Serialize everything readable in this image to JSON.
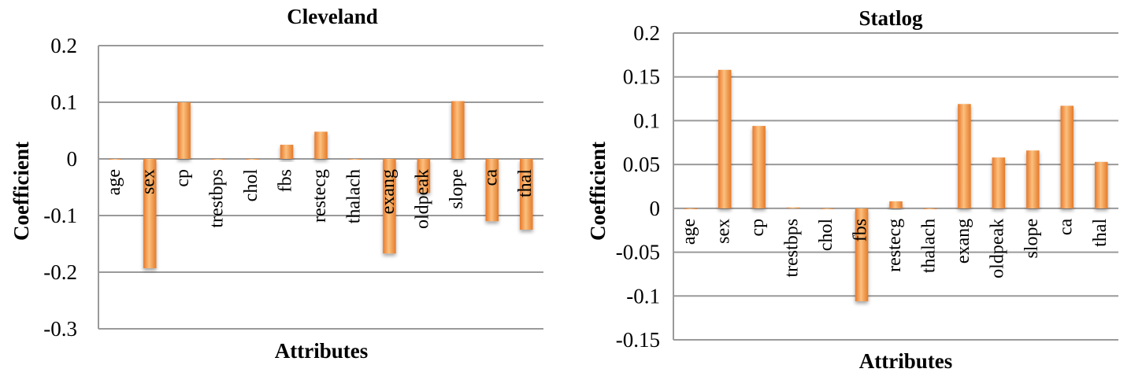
{
  "chart_data": [
    {
      "type": "bar",
      "title": "Cleveland",
      "xlabel": "Attributes",
      "ylabel": "Coefficient",
      "ylim": [
        -0.3,
        0.2
      ],
      "yticks": [
        0.2,
        0.1,
        0,
        -0.1,
        -0.2,
        -0.3
      ],
      "ytick_labels": [
        "0.2",
        "0.1",
        "0",
        "-0.1",
        "-0.2",
        "-0.3"
      ],
      "grid": true,
      "categories": [
        "age",
        "sex",
        "cp",
        "trestbps",
        "chol",
        "fbs",
        "restecg",
        "thalach",
        "exang",
        "oldpeak",
        "slope",
        "ca",
        "thal"
      ],
      "values": [
        -0.001,
        -0.193,
        0.1,
        -0.001,
        0.0,
        0.025,
        0.048,
        -0.001,
        -0.167,
        -0.06,
        0.102,
        -0.11,
        -0.125
      ],
      "bar_color": "#f0963c"
    },
    {
      "type": "bar",
      "title": "Statlog",
      "xlabel": "Attributes",
      "ylabel": "Coefficient",
      "ylim": [
        -0.15,
        0.2
      ],
      "yticks": [
        0.2,
        0.15,
        0.1,
        0.05,
        0,
        -0.05,
        -0.1,
        -0.15
      ],
      "ytick_labels": [
        "0.2",
        "0.15",
        "0.1",
        "0.05",
        "0",
        "-0.05",
        "-0.1",
        "-0.15"
      ],
      "grid": true,
      "categories": [
        "age",
        "sex",
        "cp",
        "trestbps",
        "chol",
        "fbs",
        "restecg",
        "thalach",
        "exang",
        "oldpeak",
        "slope",
        "ca",
        "thal"
      ],
      "values": [
        -0.001,
        0.158,
        0.094,
        0.001,
        0.0,
        -0.106,
        0.008,
        -0.001,
        0.119,
        0.058,
        0.066,
        0.117,
        0.053
      ],
      "bar_color": "#f0963c"
    }
  ]
}
